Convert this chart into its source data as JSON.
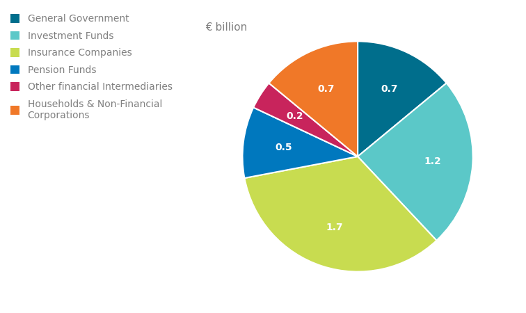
{
  "subtitle": "€ billion",
  "values": [
    0.7,
    1.2,
    1.7,
    0.5,
    0.2,
    0.7
  ],
  "colors": [
    "#006E8C",
    "#5BC8C8",
    "#C8DC50",
    "#0078BE",
    "#C8245C",
    "#F07828"
  ],
  "labels": [
    "0.7",
    "1.2",
    "1.7",
    "0.5",
    "0.2",
    "0.7"
  ],
  "startangle": 90,
  "legend_labels": [
    "General Government",
    "Investment Funds",
    "Insurance Companies",
    "Pension Funds",
    "Other financial Intermediaries",
    "Households & Non-Financial\nCorporations"
  ],
  "text_color": "#808080",
  "label_color": "#ffffff",
  "label_fontsize": 10,
  "legend_fontsize": 10,
  "subtitle_fontsize": 11
}
